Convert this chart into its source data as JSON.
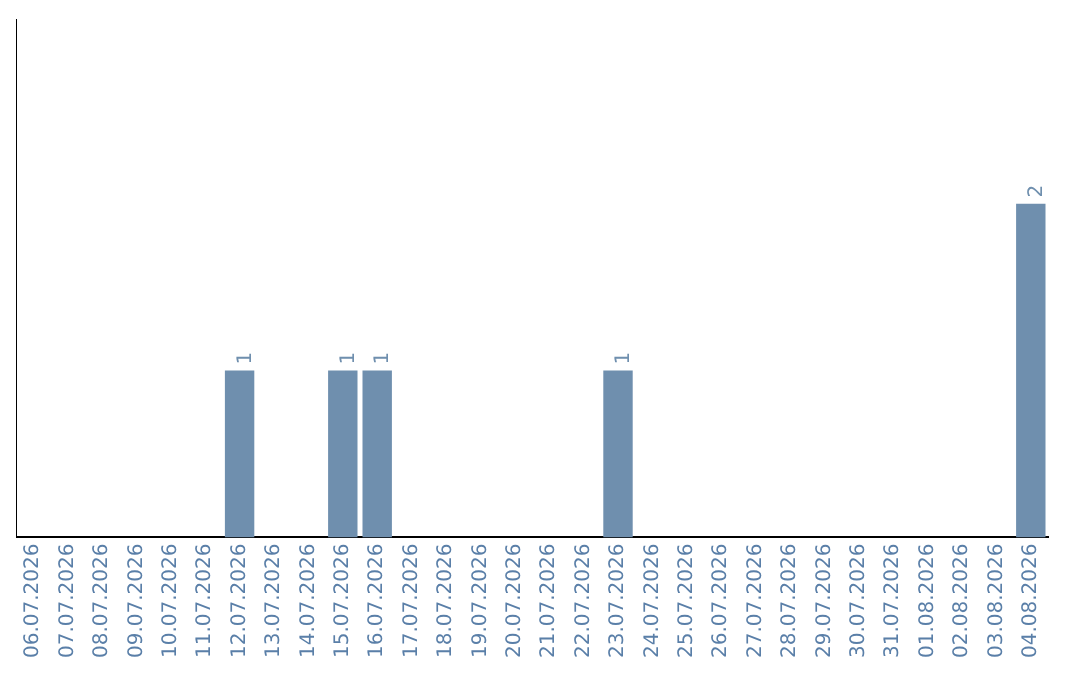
{
  "chart_data": {
    "type": "bar",
    "categories": [
      "06.07.2026",
      "07.07.2026",
      "08.07.2026",
      "09.07.2026",
      "10.07.2026",
      "11.07.2026",
      "12.07.2026",
      "13.07.2026",
      "14.07.2026",
      "15.07.2026",
      "16.07.2026",
      "17.07.2026",
      "18.07.2026",
      "19.07.2026",
      "20.07.2026",
      "21.07.2026",
      "22.07.2026",
      "23.07.2026",
      "24.07.2026",
      "25.07.2026",
      "26.07.2026",
      "27.07.2026",
      "28.07.2026",
      "29.07.2026",
      "30.07.2026",
      "31.07.2026",
      "01.08.2026",
      "02.08.2026",
      "03.08.2026",
      "04.08.2026"
    ],
    "values": [
      0,
      0,
      0,
      0,
      0,
      0,
      1,
      0,
      0,
      1,
      1,
      0,
      0,
      0,
      0,
      0,
      0,
      1,
      0,
      0,
      0,
      0,
      0,
      0,
      0,
      0,
      0,
      0,
      0,
      2
    ],
    "value_labels": [
      null,
      null,
      null,
      null,
      null,
      null,
      "1",
      null,
      null,
      "1",
      "1",
      null,
      null,
      null,
      null,
      null,
      null,
      "1",
      null,
      null,
      null,
      null,
      null,
      null,
      null,
      null,
      null,
      null,
      null,
      "2"
    ],
    "color": "#6f8fae",
    "ylim": [
      0,
      3.1
    ],
    "tick_labels": "x",
    "grid": false,
    "legend": false
  }
}
